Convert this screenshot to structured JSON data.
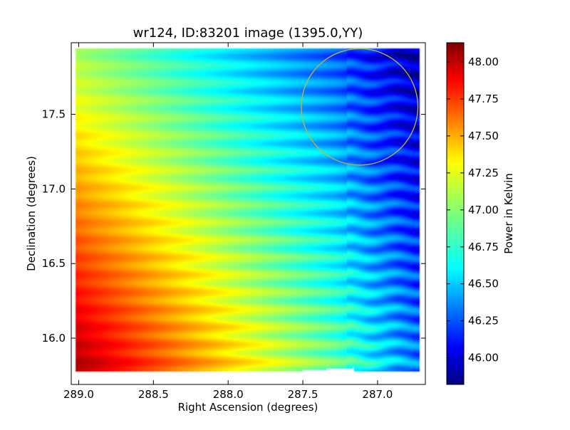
{
  "chart_data": {
    "type": "heatmap",
    "title": "wr124, ID:83201 image (1395.0,YY)",
    "xlabel": "Right Ascension (degrees)",
    "ylabel": "Declination (degrees)",
    "xlim": [
      289.05,
      286.68
    ],
    "ylim": [
      15.69,
      17.98
    ],
    "x_ticks": [
      289.0,
      288.5,
      288.0,
      287.5,
      287.0
    ],
    "x_tick_labels": [
      "289.0",
      "288.5",
      "288.0",
      "287.5",
      "287.0"
    ],
    "y_ticks": [
      16.0,
      16.5,
      17.0,
      17.5
    ],
    "y_tick_labels": [
      "16.0",
      "16.5",
      "17.0",
      "17.5"
    ],
    "colorbar": {
      "label": "Power in Kelvin",
      "range": [
        45.82,
        48.13
      ],
      "ticks": [
        46.0,
        46.25,
        46.5,
        46.75,
        47.0,
        47.25,
        47.5,
        47.75,
        48.0
      ],
      "tick_labels": [
        "46.00",
        "46.25",
        "46.50",
        "46.75",
        "47.00",
        "47.25",
        "47.50",
        "47.75",
        "48.00"
      ],
      "colormap": "jet"
    },
    "field": {
      "description": "Smooth gradient: hottest at lower-left (RA~289, Dec~15.9, ~48.1 K), coolest at upper-right (RA~286.9, Dec~17.4, ~45.9 K), with horizontal stripe pattern.",
      "corner_values": {
        "ra289_dec15_7": 48.1,
        "ra286_7_dec15_7": 46.1,
        "ra289_dec18_0": 46.8,
        "ra286_7_dec18_0": 46.0
      }
    },
    "annotation_circle": {
      "ra": 287.12,
      "dec": 17.55,
      "radius_ra_deg": 0.39,
      "color": "#c8b432"
    },
    "grid": false,
    "legend": "none"
  }
}
